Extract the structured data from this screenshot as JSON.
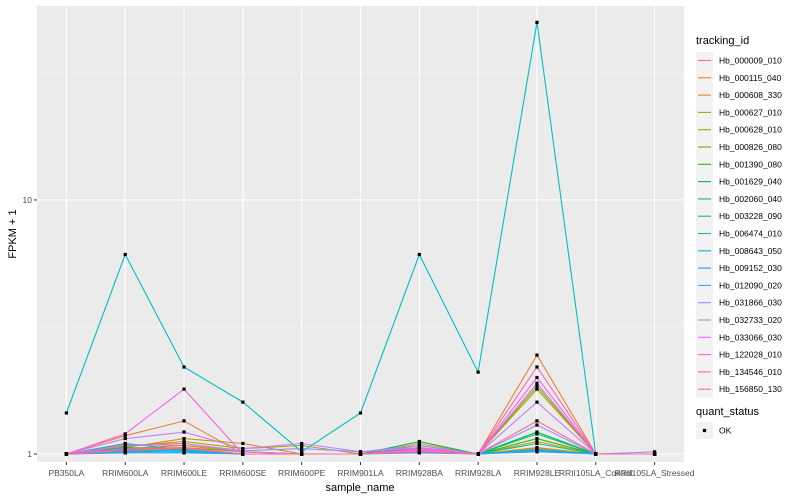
{
  "chart_data": {
    "type": "line",
    "title": "",
    "xlabel": "sample_name",
    "ylabel": "FPKM + 1",
    "y_scale": "log10",
    "ylim": [
      0.93,
      58
    ],
    "y_ticks": [
      {
        "value": 1,
        "label": "1"
      },
      {
        "value": 10,
        "label": "10"
      }
    ],
    "grid": true,
    "legend_position": "right",
    "categories": [
      "PB350LA",
      "RRIM600LA",
      "RRIM600LE",
      "RRIM600SE",
      "RRIM600PE",
      "RRIM901LA",
      "RRIM928BA",
      "RRIM928LA",
      "RRIM928LE",
      "RRII105LA_Control",
      "RRII105LA_Stressed"
    ],
    "legend": {
      "tracking_title": "tracking_id",
      "quant_title": "quant_status",
      "quant_entries": [
        {
          "label": "OK"
        }
      ]
    },
    "series": [
      {
        "name": "Hb_000009_010",
        "color": "#F8766D",
        "values": [
          1.0,
          1.09,
          1.08,
          1.02,
          1.0,
          1.0,
          1.04,
          1.0,
          1.05,
          1.0,
          1.0
        ]
      },
      {
        "name": "Hb_000115_040",
        "color": "#EA8331",
        "values": [
          1.0,
          1.18,
          1.35,
          1.0,
          1.0,
          1.0,
          1.1,
          1.0,
          2.45,
          1.0,
          1.0
        ]
      },
      {
        "name": "Hb_000608_330",
        "color": "#D89000",
        "values": [
          1.0,
          1.06,
          1.15,
          1.1,
          1.0,
          1.0,
          1.05,
          1.0,
          1.12,
          1.0,
          1.0
        ]
      },
      {
        "name": "Hb_000627_010",
        "color": "#C09B00",
        "values": [
          1.0,
          1.05,
          1.08,
          1.02,
          1.0,
          1.0,
          1.03,
          1.0,
          1.06,
          1.0,
          1.0
        ]
      },
      {
        "name": "Hb_000628_010",
        "color": "#A3A500",
        "values": [
          1.0,
          1.07,
          1.12,
          1.05,
          1.08,
          1.0,
          1.08,
          1.0,
          1.8,
          1.0,
          1.0
        ]
      },
      {
        "name": "Hb_000826_080",
        "color": "#7CAE00",
        "values": [
          1.0,
          1.04,
          1.06,
          1.02,
          1.0,
          1.0,
          1.05,
          1.0,
          1.85,
          1.0,
          1.0
        ]
      },
      {
        "name": "Hb_001390_080",
        "color": "#39B600",
        "values": [
          1.0,
          1.03,
          1.05,
          1.0,
          1.0,
          1.0,
          1.04,
          1.0,
          1.15,
          1.0,
          1.0
        ]
      },
      {
        "name": "Hb_001629_040",
        "color": "#00BB4E",
        "values": [
          1.0,
          1.02,
          1.04,
          1.0,
          1.0,
          1.0,
          1.12,
          1.0,
          1.22,
          1.0,
          1.0
        ]
      },
      {
        "name": "Hb_002060_040",
        "color": "#00BF7D",
        "values": [
          1.0,
          1.06,
          1.05,
          1.0,
          1.0,
          1.0,
          1.06,
          1.0,
          1.2,
          1.0,
          1.0
        ]
      },
      {
        "name": "Hb_003228_090",
        "color": "#00C1A3",
        "values": [
          1.0,
          1.1,
          1.04,
          1.0,
          1.0,
          1.0,
          1.03,
          1.0,
          1.1,
          1.0,
          1.0
        ]
      },
      {
        "name": "Hb_006474_010",
        "color": "#00BFC4",
        "values": [
          1.45,
          6.1,
          2.2,
          1.6,
          1.02,
          1.45,
          6.1,
          2.1,
          50.0,
          1.0,
          1.0
        ]
      },
      {
        "name": "Hb_008643_050",
        "color": "#00BAE0",
        "values": [
          1.0,
          1.04,
          1.03,
          1.0,
          1.0,
          1.0,
          1.02,
          1.0,
          1.04,
          1.0,
          1.0
        ]
      },
      {
        "name": "Hb_009152_030",
        "color": "#00B0F6",
        "values": [
          1.0,
          1.02,
          1.02,
          1.0,
          1.0,
          1.0,
          1.02,
          1.0,
          1.03,
          1.0,
          1.0
        ]
      },
      {
        "name": "Hb_012090_020",
        "color": "#35A2FF",
        "values": [
          1.0,
          1.01,
          1.01,
          1.0,
          1.0,
          1.0,
          1.01,
          1.0,
          1.02,
          1.0,
          1.0
        ]
      },
      {
        "name": "Hb_031866_030",
        "color": "#9590FF",
        "values": [
          1.0,
          1.08,
          1.1,
          1.03,
          1.05,
          1.02,
          1.08,
          1.0,
          1.3,
          1.0,
          1.02
        ]
      },
      {
        "name": "Hb_032733_020",
        "color": "#C77CFF",
        "values": [
          1.0,
          1.15,
          1.22,
          1.05,
          1.1,
          1.02,
          1.06,
          1.0,
          1.6,
          1.0,
          1.0
        ]
      },
      {
        "name": "Hb_033066_030",
        "color": "#E76BF3",
        "values": [
          1.0,
          1.08,
          1.1,
          1.02,
          1.0,
          1.0,
          1.04,
          1.0,
          1.9,
          1.0,
          1.0
        ]
      },
      {
        "name": "Hb_122028_010",
        "color": "#FA62DB",
        "values": [
          1.0,
          1.2,
          1.8,
          1.0,
          1.0,
          1.0,
          1.05,
          1.0,
          2.0,
          1.0,
          1.0
        ]
      },
      {
        "name": "Hb_134546_010",
        "color": "#FF62BC",
        "values": [
          1.0,
          1.05,
          1.06,
          1.0,
          1.0,
          1.0,
          1.03,
          1.0,
          2.2,
          1.0,
          1.0
        ]
      },
      {
        "name": "Hb_156850_130",
        "color": "#FF6C91",
        "values": [
          1.0,
          1.03,
          1.05,
          1.0,
          1.0,
          1.0,
          1.02,
          1.0,
          1.35,
          1.0,
          1.0
        ]
      }
    ]
  }
}
